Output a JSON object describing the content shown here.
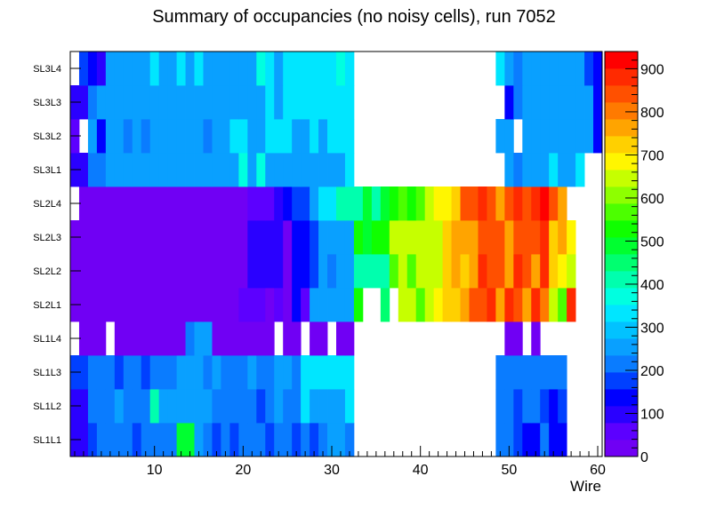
{
  "chart_data": {
    "type": "heatmap",
    "title": "Summary of occupancies (no noisy cells), run 7052",
    "xlabel": "Wire",
    "ylabel": "",
    "x_range": [
      0.5,
      60.5
    ],
    "x_ticks": [
      "10",
      "20",
      "30",
      "40",
      "50",
      "60"
    ],
    "x_tick_values": [
      10,
      20,
      30,
      40,
      50,
      60
    ],
    "y_categories": [
      "SL1L1",
      "SL1L2",
      "SL1L3",
      "SL1L4",
      "SL2L1",
      "SL2L2",
      "SL2L3",
      "SL2L4",
      "SL3L1",
      "SL3L2",
      "SL3L3",
      "SL3L4"
    ],
    "z_range": [
      0,
      940
    ],
    "colorbar_ticks": [
      "0",
      "100",
      "200",
      "300",
      "400",
      "500",
      "600",
      "700",
      "800",
      "900"
    ],
    "colorbar_tick_values": [
      0,
      100,
      200,
      300,
      400,
      500,
      600,
      700,
      800,
      900
    ],
    "palette": [
      "#7000f4",
      "#5c00ff",
      "#2a00ff",
      "#0000ff",
      "#0040ff",
      "#0a7cff",
      "#09a0ff",
      "#02c2ff",
      "#00e6ff",
      "#00ffe0",
      "#00ffae",
      "#00ff70",
      "#00ff30",
      "#10ff00",
      "#4cff00",
      "#8eff00",
      "#c6ff00",
      "#fff600",
      "#ffd000",
      "#ffa400",
      "#ff7a00",
      "#ff5000",
      "#ff2a00",
      "#ff0000"
    ],
    "z": [
      [
        80,
        80,
        170,
        220,
        220,
        220,
        220,
        170,
        220,
        220,
        220,
        220,
        490,
        490,
        270,
        220,
        170,
        220,
        170,
        220,
        220,
        220,
        170,
        220,
        220,
        170,
        220,
        170,
        220,
        270,
        270,
        220,
        null,
        null,
        null,
        null,
        null,
        null,
        null,
        null,
        null,
        null,
        null,
        null,
        null,
        null,
        null,
        null,
        220,
        220,
        170,
        120,
        120,
        220,
        120,
        120,
        null,
        null,
        null,
        null
      ],
      [
        80,
        80,
        220,
        220,
        220,
        270,
        220,
        220,
        220,
        400,
        270,
        270,
        270,
        270,
        270,
        270,
        220,
        220,
        220,
        220,
        220,
        170,
        220,
        270,
        220,
        220,
        320,
        270,
        270,
        270,
        270,
        320,
        null,
        null,
        null,
        null,
        null,
        null,
        null,
        null,
        null,
        null,
        null,
        null,
        null,
        null,
        null,
        null,
        220,
        220,
        170,
        220,
        220,
        170,
        120,
        170,
        null,
        null,
        null,
        null
      ],
      [
        170,
        170,
        220,
        220,
        220,
        170,
        220,
        220,
        170,
        220,
        220,
        220,
        270,
        270,
        270,
        220,
        270,
        220,
        220,
        220,
        270,
        220,
        220,
        270,
        270,
        220,
        320,
        320,
        320,
        320,
        320,
        320,
        null,
        null,
        null,
        null,
        null,
        null,
        null,
        null,
        null,
        null,
        null,
        null,
        null,
        null,
        null,
        null,
        220,
        220,
        220,
        220,
        220,
        220,
        220,
        220,
        null,
        null,
        null,
        null
      ],
      [
        null,
        30,
        30,
        30,
        null,
        30,
        30,
        30,
        30,
        30,
        30,
        30,
        30,
        220,
        270,
        270,
        30,
        30,
        30,
        30,
        30,
        30,
        30,
        null,
        30,
        30,
        null,
        30,
        30,
        null,
        30,
        30,
        null,
        null,
        null,
        null,
        null,
        null,
        null,
        null,
        null,
        null,
        null,
        null,
        null,
        null,
        null,
        null,
        null,
        30,
        30,
        null,
        30,
        null,
        null,
        null,
        null,
        null,
        null,
        null
      ],
      [
        30,
        30,
        30,
        30,
        30,
        30,
        30,
        30,
        30,
        30,
        30,
        30,
        30,
        30,
        30,
        30,
        30,
        30,
        30,
        60,
        60,
        60,
        30,
        60,
        30,
        120,
        60,
        270,
        270,
        270,
        270,
        270,
        530,
        null,
        null,
        460,
        null,
        630,
        630,
        580,
        630,
        680,
        730,
        730,
        780,
        830,
        830,
        880,
        780,
        880,
        830,
        780,
        880,
        800,
        630,
        580,
        880,
        null,
        null,
        null
      ],
      [
        30,
        30,
        30,
        30,
        30,
        30,
        30,
        30,
        30,
        30,
        30,
        30,
        30,
        30,
        30,
        30,
        30,
        30,
        30,
        30,
        80,
        80,
        80,
        80,
        30,
        120,
        120,
        170,
        270,
        220,
        270,
        270,
        430,
        430,
        430,
        430,
        580,
        630,
        580,
        630,
        630,
        630,
        730,
        780,
        730,
        780,
        880,
        830,
        830,
        780,
        880,
        830,
        780,
        880,
        730,
        680,
        630,
        null,
        null,
        null
      ],
      [
        30,
        30,
        30,
        30,
        30,
        30,
        30,
        30,
        30,
        30,
        30,
        30,
        30,
        30,
        30,
        30,
        30,
        30,
        30,
        30,
        80,
        80,
        80,
        80,
        30,
        120,
        120,
        170,
        270,
        270,
        270,
        270,
        530,
        480,
        530,
        530,
        630,
        630,
        630,
        630,
        630,
        630,
        730,
        780,
        780,
        780,
        830,
        830,
        830,
        780,
        830,
        830,
        830,
        880,
        730,
        780,
        680,
        null,
        null,
        null
      ],
      [
        null,
        30,
        30,
        30,
        30,
        30,
        30,
        30,
        30,
        30,
        30,
        30,
        30,
        30,
        30,
        30,
        30,
        30,
        30,
        30,
        60,
        60,
        60,
        80,
        120,
        170,
        170,
        270,
        320,
        320,
        400,
        430,
        430,
        480,
        430,
        480,
        530,
        580,
        530,
        580,
        630,
        680,
        680,
        730,
        830,
        830,
        880,
        830,
        780,
        830,
        880,
        830,
        880,
        920,
        830,
        780,
        null,
        null,
        null,
        null
      ],
      [
        80,
        80,
        220,
        220,
        270,
        270,
        270,
        270,
        270,
        270,
        270,
        270,
        270,
        270,
        270,
        270,
        270,
        270,
        270,
        370,
        270,
        370,
        270,
        270,
        270,
        270,
        270,
        270,
        270,
        270,
        270,
        320,
        null,
        null,
        null,
        null,
        null,
        null,
        null,
        null,
        null,
        null,
        null,
        null,
        null,
        null,
        null,
        null,
        null,
        270,
        220,
        270,
        270,
        270,
        320,
        270,
        270,
        320,
        null,
        null
      ],
      [
        50,
        null,
        270,
        120,
        270,
        270,
        220,
        270,
        220,
        270,
        270,
        270,
        270,
        270,
        270,
        220,
        270,
        270,
        320,
        320,
        270,
        270,
        320,
        320,
        320,
        270,
        270,
        320,
        270,
        320,
        320,
        320,
        null,
        null,
        null,
        null,
        null,
        null,
        null,
        null,
        null,
        null,
        null,
        null,
        null,
        null,
        null,
        null,
        270,
        270,
        null,
        270,
        270,
        270,
        270,
        270,
        270,
        270,
        270,
        120
      ],
      [
        80,
        80,
        220,
        270,
        270,
        270,
        270,
        270,
        270,
        270,
        270,
        270,
        270,
        270,
        270,
        270,
        270,
        270,
        270,
        270,
        270,
        270,
        320,
        270,
        320,
        320,
        320,
        320,
        320,
        320,
        320,
        320,
        null,
        null,
        null,
        null,
        null,
        null,
        null,
        null,
        null,
        null,
        null,
        null,
        null,
        null,
        null,
        null,
        null,
        120,
        220,
        270,
        270,
        270,
        270,
        270,
        270,
        270,
        270,
        120
      ],
      [
        null,
        170,
        120,
        80,
        270,
        270,
        270,
        270,
        270,
        320,
        270,
        270,
        320,
        270,
        320,
        270,
        270,
        270,
        270,
        270,
        270,
        370,
        320,
        270,
        320,
        320,
        320,
        320,
        320,
        320,
        370,
        320,
        null,
        null,
        null,
        null,
        null,
        null,
        null,
        null,
        null,
        null,
        null,
        null,
        null,
        null,
        null,
        null,
        320,
        270,
        220,
        270,
        270,
        270,
        270,
        270,
        270,
        270,
        170,
        120
      ]
    ]
  }
}
